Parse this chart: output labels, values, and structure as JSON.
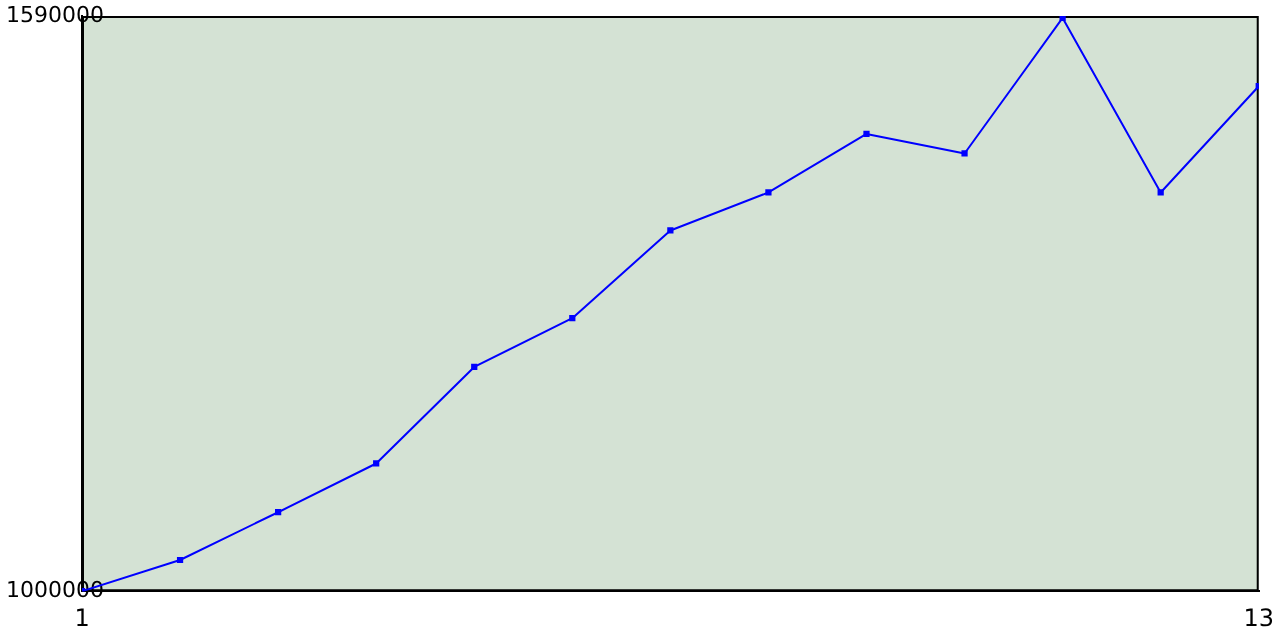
{
  "chart_data": {
    "type": "line",
    "x": [
      1,
      2,
      3,
      4,
      5,
      6,
      7,
      8,
      9,
      10,
      11,
      12,
      13
    ],
    "series": [
      {
        "color": "#0000ff",
        "values": [
          1000000,
          1032000,
          1081000,
          1131000,
          1230000,
          1280000,
          1370000,
          1409000,
          1469000,
          1449000,
          1588000,
          1409000,
          1518000
        ]
      }
    ],
    "xlim": [
      1,
      13
    ],
    "xticks": [
      1,
      13
    ],
    "ylim": [
      1000000,
      1590000
    ],
    "yticks": [
      1000000,
      1590000
    ],
    "grid": false,
    "legend": false,
    "marker": "square",
    "line_style": "solid"
  }
}
